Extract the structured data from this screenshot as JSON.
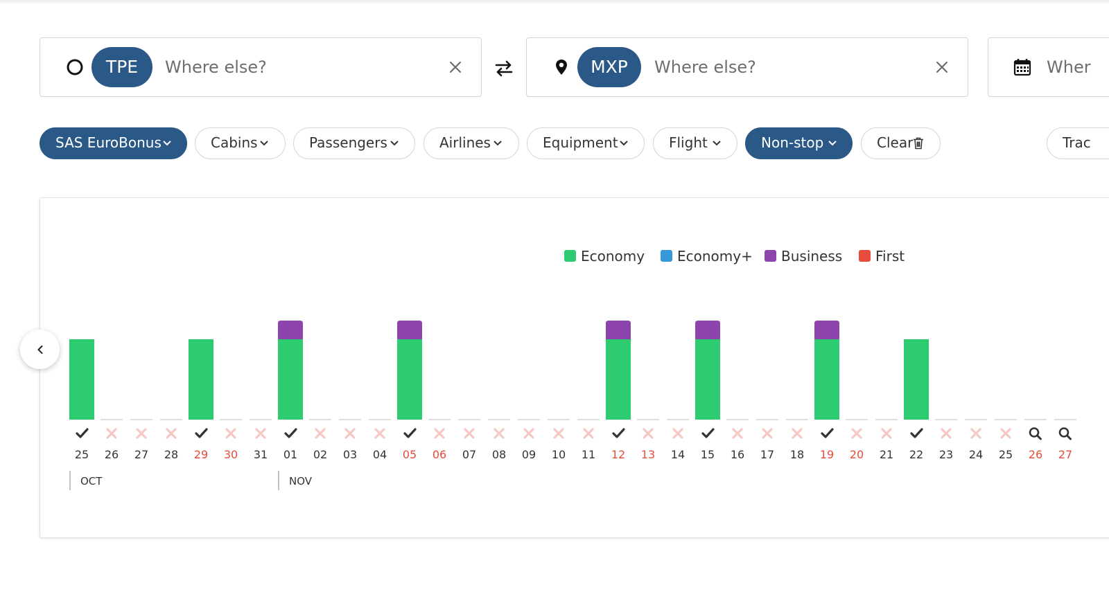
{
  "search": {
    "origin": {
      "code": "TPE",
      "placeholder": "Where else?",
      "icon": "circle-icon"
    },
    "destination": {
      "code": "MXP",
      "placeholder": "Where else?",
      "icon": "map-pin-icon"
    },
    "date": {
      "placeholder_partial": "Wher",
      "icon": "calendar-icon"
    },
    "swap_icon": "swap-arrows-icon"
  },
  "filters": [
    {
      "label": "SAS EuroBonus",
      "active": true
    },
    {
      "label": "Cabins",
      "active": false
    },
    {
      "label": "Passengers",
      "active": false
    },
    {
      "label": "Airlines",
      "active": false
    },
    {
      "label": "Equipment",
      "active": false
    },
    {
      "label": "Flight",
      "active": false
    },
    {
      "label": "Non-stop",
      "active": true
    },
    {
      "label": "Clear",
      "active": false,
      "icon": "trash-icon"
    },
    {
      "label": "Trac",
      "active": false
    }
  ],
  "colors": {
    "accent": "#2b5987",
    "economy": "#2ecc71",
    "economy_plus": "#3498db",
    "business": "#8e44ad",
    "first": "#e74c3c",
    "weekend": "#e74c3c",
    "unavailable": "#f6c8c4"
  },
  "chart_data": {
    "type": "bar",
    "legend": [
      "Economy",
      "Economy+",
      "Business",
      "First"
    ],
    "legend_placement": "top-center",
    "months": [
      {
        "label": "OCT",
        "start_index": 0
      },
      {
        "label": "NOV",
        "start_index": 7
      }
    ],
    "days": [
      {
        "day": "25",
        "weekend": false,
        "status": "check",
        "economy": 1,
        "business": 0
      },
      {
        "day": "26",
        "weekend": false,
        "status": "cross",
        "economy": 0,
        "business": 0
      },
      {
        "day": "27",
        "weekend": false,
        "status": "cross",
        "economy": 0,
        "business": 0
      },
      {
        "day": "28",
        "weekend": false,
        "status": "cross",
        "economy": 0,
        "business": 0
      },
      {
        "day": "29",
        "weekend": true,
        "status": "check",
        "economy": 1,
        "business": 0
      },
      {
        "day": "30",
        "weekend": true,
        "status": "cross",
        "economy": 0,
        "business": 0
      },
      {
        "day": "31",
        "weekend": false,
        "status": "cross",
        "economy": 0,
        "business": 0
      },
      {
        "day": "01",
        "weekend": false,
        "status": "check",
        "economy": 1,
        "business": 1
      },
      {
        "day": "02",
        "weekend": false,
        "status": "cross",
        "economy": 0,
        "business": 0
      },
      {
        "day": "03",
        "weekend": false,
        "status": "cross",
        "economy": 0,
        "business": 0
      },
      {
        "day": "04",
        "weekend": false,
        "status": "cross",
        "economy": 0,
        "business": 0
      },
      {
        "day": "05",
        "weekend": true,
        "status": "check",
        "economy": 1,
        "business": 1
      },
      {
        "day": "06",
        "weekend": true,
        "status": "cross",
        "economy": 0,
        "business": 0
      },
      {
        "day": "07",
        "weekend": false,
        "status": "cross",
        "economy": 0,
        "business": 0
      },
      {
        "day": "08",
        "weekend": false,
        "status": "cross",
        "economy": 0,
        "business": 0
      },
      {
        "day": "09",
        "weekend": false,
        "status": "cross",
        "economy": 0,
        "business": 0
      },
      {
        "day": "10",
        "weekend": false,
        "status": "cross",
        "economy": 0,
        "business": 0
      },
      {
        "day": "11",
        "weekend": false,
        "status": "cross",
        "economy": 0,
        "business": 0
      },
      {
        "day": "12",
        "weekend": true,
        "status": "check",
        "economy": 1,
        "business": 1
      },
      {
        "day": "13",
        "weekend": true,
        "status": "cross",
        "economy": 0,
        "business": 0
      },
      {
        "day": "14",
        "weekend": false,
        "status": "cross",
        "economy": 0,
        "business": 0
      },
      {
        "day": "15",
        "weekend": false,
        "status": "check",
        "economy": 1,
        "business": 1
      },
      {
        "day": "16",
        "weekend": false,
        "status": "cross",
        "economy": 0,
        "business": 0
      },
      {
        "day": "17",
        "weekend": false,
        "status": "cross",
        "economy": 0,
        "business": 0
      },
      {
        "day": "18",
        "weekend": false,
        "status": "cross",
        "economy": 0,
        "business": 0
      },
      {
        "day": "19",
        "weekend": true,
        "status": "check",
        "economy": 1,
        "business": 1
      },
      {
        "day": "20",
        "weekend": true,
        "status": "cross",
        "economy": 0,
        "business": 0
      },
      {
        "day": "21",
        "weekend": false,
        "status": "cross",
        "economy": 0,
        "business": 0
      },
      {
        "day": "22",
        "weekend": false,
        "status": "check",
        "economy": 1,
        "business": 0
      },
      {
        "day": "23",
        "weekend": false,
        "status": "cross",
        "economy": 0,
        "business": 0
      },
      {
        "day": "24",
        "weekend": false,
        "status": "cross",
        "economy": 0,
        "business": 0
      },
      {
        "day": "25",
        "weekend": false,
        "status": "cross",
        "economy": 0,
        "business": 0
      },
      {
        "day": "26",
        "weekend": true,
        "status": "search",
        "economy": 0,
        "business": 0
      },
      {
        "day": "27",
        "weekend": true,
        "status": "search",
        "economy": 0,
        "business": 0
      }
    ]
  },
  "navigation": {
    "prev_icon": "chevron-left-icon"
  }
}
